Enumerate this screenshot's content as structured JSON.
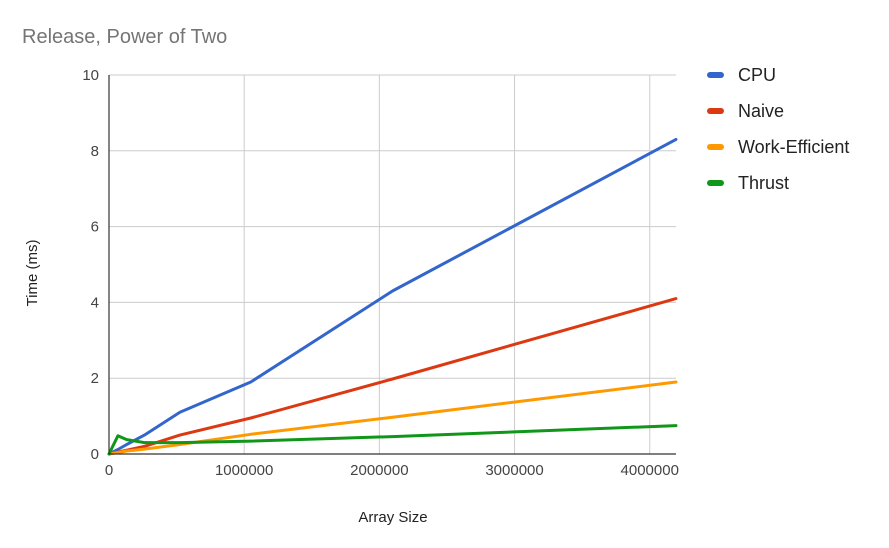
{
  "chart_data": {
    "type": "line",
    "title": "Release, Power of Two",
    "xlabel": "Array Size",
    "ylabel": "Time (ms)",
    "xlim": [
      0,
      4194304
    ],
    "ylim": [
      0,
      10
    ],
    "x_ticks": [
      0,
      1000000,
      2000000,
      3000000,
      4000000
    ],
    "x_tick_labels": [
      "0",
      "1000000",
      "2000000",
      "3000000",
      "4000000"
    ],
    "y_ticks": [
      0,
      2,
      4,
      6,
      8,
      10
    ],
    "y_tick_labels": [
      "0",
      "2",
      "4",
      "6",
      "8",
      "10"
    ],
    "grid": true,
    "legend_position": "right",
    "x": [
      0,
      65536,
      131072,
      262144,
      524288,
      1048576,
      2097152,
      4194304
    ],
    "series": [
      {
        "name": "CPU",
        "color": "#3366cc",
        "values": [
          0.0,
          0.12,
          0.25,
          0.5,
          1.1,
          1.9,
          4.3,
          8.3
        ]
      },
      {
        "name": "Naive",
        "color": "#dc3912",
        "values": [
          0.0,
          0.05,
          0.1,
          0.2,
          0.5,
          0.95,
          1.98,
          4.1
        ]
      },
      {
        "name": "Work-Efficient",
        "color": "#ff9900",
        "values": [
          0.0,
          0.04,
          0.08,
          0.13,
          0.25,
          0.52,
          0.97,
          1.9
        ]
      },
      {
        "name": "Thrust",
        "color": "#109618",
        "values": [
          0.0,
          0.48,
          0.38,
          0.3,
          0.3,
          0.34,
          0.46,
          0.75
        ]
      }
    ]
  }
}
